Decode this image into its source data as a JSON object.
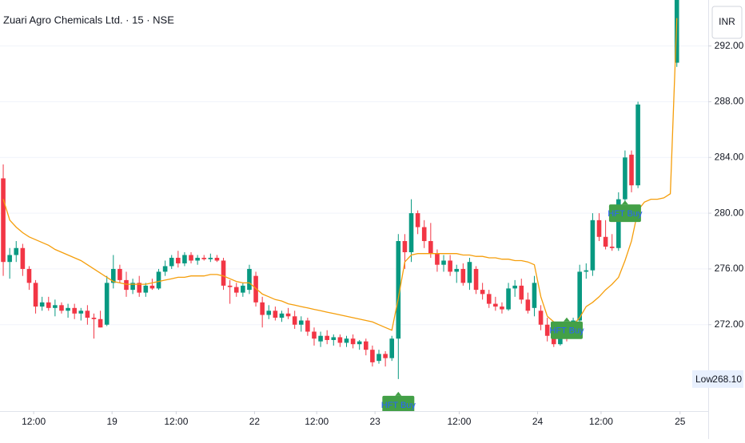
{
  "chart_data": {
    "type": "candlestick",
    "title": "Zuari Agro Chemicals Ltd. · 15 · NSE",
    "currency": "INR",
    "xlim": [
      -0.5,
      108.6
    ],
    "ylim": [
      265.8,
      295.3
    ],
    "grid": true,
    "up_color": "#089981",
    "down_color": "#f23645",
    "xticks": [
      {
        "value": 4.7,
        "label": "12:00"
      },
      {
        "value": 16.8,
        "label": "19"
      },
      {
        "value": 26.7,
        "label": "12:00"
      },
      {
        "value": 38.8,
        "label": "22"
      },
      {
        "value": 48.4,
        "label": "12:00"
      },
      {
        "value": 57.4,
        "label": "23"
      },
      {
        "value": 70.4,
        "label": "12:00"
      },
      {
        "value": 82.5,
        "label": "24"
      },
      {
        "value": 92.3,
        "label": "12:00"
      },
      {
        "value": 104.5,
        "label": "25"
      }
    ],
    "yticks": [
      {
        "value": 272,
        "label": "272.00"
      },
      {
        "value": 276,
        "label": "276.00"
      },
      {
        "value": 280,
        "label": "280.00"
      },
      {
        "value": 284,
        "label": "284.00"
      },
      {
        "value": 288,
        "label": "288.00"
      },
      {
        "value": 292,
        "label": "292.00"
      }
    ],
    "open": [
      282.5,
      276.5,
      277,
      277.5,
      276,
      275,
      273.3,
      273.6,
      273.2,
      273.4,
      273,
      273.2,
      272.8,
      273,
      272.5,
      272.4,
      272,
      275,
      276,
      275.2,
      274.5,
      275,
      274.3,
      274.8,
      274.6,
      275.8,
      276.2,
      276.8,
      276.4,
      277,
      276.6,
      276.8,
      276.7,
      276.8,
      276.6,
      274.8,
      274.7,
      274.3,
      274.5,
      275.5,
      273.6,
      272.7,
      273,
      272.5,
      272.8,
      272.6,
      272,
      272.3,
      271.5,
      270.8,
      271.2,
      270.9,
      271.1,
      270.7,
      271,
      270.6,
      270.8,
      270.2,
      269.4,
      269.9,
      269.6,
      271,
      278,
      277.2,
      280,
      279,
      278,
      277.1,
      276.3,
      276.6,
      275.8,
      276,
      275,
      276,
      274.5,
      274.2,
      273.5,
      273.3,
      273.1,
      274.6,
      274.8,
      273.8,
      273.2,
      273,
      272,
      271.2,
      270.6,
      271.5,
      271.2,
      272.3,
      275.8,
      275.9,
      279.5,
      278.3,
      277.6,
      277.5,
      281,
      284.2,
      282,
      null,
      null,
      null,
      null,
      null,
      290.8
    ],
    "high": [
      283.5,
      277.5,
      278,
      277.8,
      276.2,
      275.2,
      274,
      274,
      273.8,
      273.6,
      273.5,
      273.5,
      273.2,
      273.4,
      272.8,
      273,
      275.5,
      277,
      276.3,
      275.8,
      275.3,
      275.5,
      275,
      275.3,
      276,
      276.6,
      277,
      277.3,
      277.2,
      277.2,
      277,
      277,
      277.1,
      277,
      276.8,
      275.2,
      275,
      275,
      276.3,
      275.8,
      274,
      273.4,
      273.3,
      273,
      273.2,
      273,
      272.6,
      272.5,
      271.8,
      271.5,
      271.6,
      271.3,
      271.3,
      271.2,
      271.3,
      270.9,
      271,
      270.5,
      270.2,
      270.1,
      271.2,
      278.5,
      278.5,
      281,
      280.2,
      279.5,
      279.3,
      277.4,
      277,
      277,
      276.3,
      276.4,
      276.8,
      276.2,
      275,
      274.5,
      274,
      273.6,
      275,
      275.2,
      275.3,
      274.3,
      275.5,
      273.4,
      272.5,
      271.5,
      271.7,
      271.8,
      272.5,
      276.3,
      276.4,
      280,
      280,
      279.5,
      278.5,
      281.5,
      284.5,
      284.5,
      288,
      null,
      null,
      null,
      null,
      null,
      296
    ],
    "low": [
      275.5,
      275.3,
      276.5,
      275.5,
      274.5,
      272.8,
      273,
      273,
      272.6,
      272.8,
      272.5,
      272.4,
      272.3,
      272,
      271,
      271.8,
      271.9,
      274.6,
      275,
      274,
      274.2,
      274,
      274,
      274.5,
      274.5,
      275.5,
      276,
      276.1,
      276.2,
      276.4,
      276.3,
      276.6,
      276.5,
      276.5,
      274.5,
      273.5,
      274,
      274,
      274.2,
      273.3,
      271.8,
      272.4,
      272.3,
      272.2,
      272.4,
      271.7,
      271.5,
      271.2,
      270.5,
      270.4,
      270.6,
      270.5,
      270.4,
      270.4,
      270.3,
      270.2,
      269.8,
      269,
      269.2,
      269,
      269.4,
      268.1,
      276,
      276.5,
      278.5,
      277.5,
      276.8,
      275.8,
      275.8,
      275.5,
      275,
      274.8,
      274.5,
      274.2,
      273.8,
      273.2,
      273,
      272.8,
      273,
      274,
      273.5,
      272.8,
      272.6,
      271.6,
      270.8,
      270.4,
      270.5,
      270.8,
      271,
      272,
      275.3,
      275.5,
      278,
      277.4,
      277.3,
      277.3,
      280.8,
      281.5,
      281.8,
      null,
      null,
      null,
      null,
      null,
      290.5
    ],
    "close": [
      276.5,
      277,
      277.5,
      276,
      275,
      273.3,
      273.6,
      273.2,
      273.4,
      273,
      273.2,
      272.8,
      273,
      272.5,
      272.4,
      271.8,
      275,
      276,
      275.2,
      274.5,
      275,
      274.3,
      274.8,
      274.6,
      275.8,
      276.2,
      276.8,
      276.4,
      277,
      276.6,
      276.8,
      276.7,
      276.8,
      276.6,
      274.8,
      274.7,
      274.3,
      274.8,
      276,
      273.6,
      272.7,
      273,
      272.5,
      272.8,
      272.6,
      272,
      272.3,
      271.5,
      271,
      271.2,
      270.9,
      271.1,
      270.7,
      271,
      270.6,
      270.8,
      270.2,
      269.3,
      269.9,
      269.6,
      271,
      278,
      277.2,
      280,
      279,
      278,
      277.1,
      276.3,
      276.6,
      275.8,
      276,
      275,
      276.5,
      274.5,
      274.2,
      273.5,
      273.3,
      273.1,
      274.6,
      274.8,
      273.8,
      273,
      275,
      272,
      271.2,
      270.6,
      271.5,
      271.2,
      272.3,
      275.8,
      275.9,
      279.5,
      278.3,
      277.6,
      277.5,
      281,
      284,
      282,
      287.8,
      null,
      null,
      null,
      null,
      null,
      295.5
    ],
    "line": {
      "color": "#f59e0b",
      "values": [
        281,
        279.5,
        279,
        278.6,
        278.3,
        278.1,
        277.9,
        277.7,
        277.4,
        277.2,
        277,
        276.8,
        276.6,
        276.3,
        276,
        275.7,
        275.4,
        275.1,
        275,
        274.9,
        274.9,
        274.9,
        274.9,
        275,
        275.1,
        275.2,
        275.3,
        275.4,
        275.4,
        275.5,
        275.5,
        275.5,
        275.6,
        275.6,
        275.5,
        275.3,
        275.1,
        275,
        275,
        274.6,
        274.2,
        274,
        273.8,
        273.7,
        273.5,
        273.4,
        273.3,
        273.2,
        273.1,
        273,
        272.9,
        272.8,
        272.7,
        272.6,
        272.5,
        272.4,
        272.3,
        272.2,
        272,
        271.8,
        271.6,
        273.9,
        276.5,
        277,
        277.1,
        277.1,
        277.1,
        277.1,
        277.1,
        277.1,
        277.1,
        277,
        277,
        276.9,
        276.9,
        276.8,
        276.8,
        276.7,
        276.7,
        276.6,
        276.6,
        276.5,
        276.3,
        274,
        272.6,
        272.2,
        271.9,
        271.8,
        272,
        272.5,
        273.3,
        273.6,
        274,
        274.5,
        274.9,
        275.4,
        276.6,
        278,
        280.2,
        280.8,
        281,
        281,
        281.1,
        281.4,
        294
      ]
    },
    "annotations": [
      "HFT Buy",
      "HFT Buy",
      "HFT Buy"
    ],
    "low_marker": {
      "label": "Low",
      "value": 268.1,
      "value_label": "268.10"
    }
  }
}
